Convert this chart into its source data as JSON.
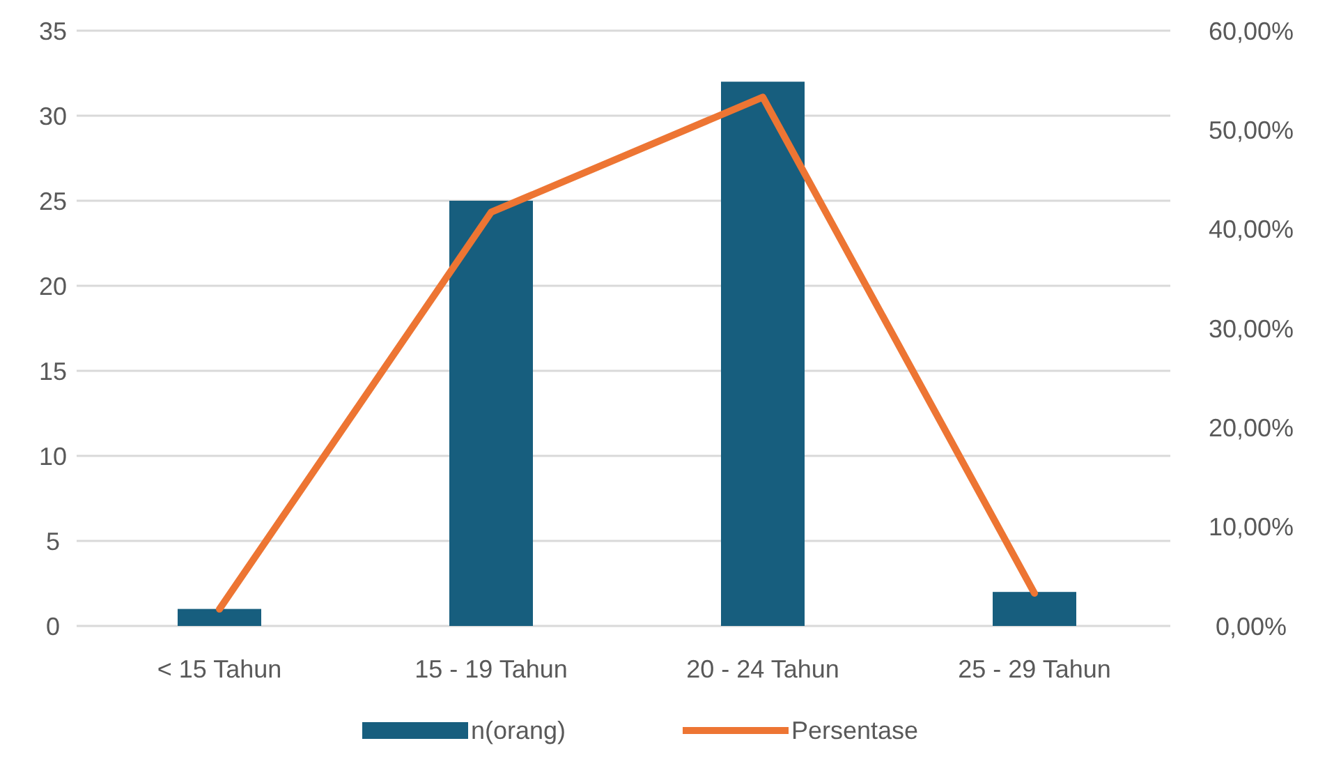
{
  "chart_data": {
    "type": "bar",
    "categories": [
      "< 15 Tahun",
      "15 - 19 Tahun",
      "20 - 24 Tahun",
      "25 - 29 Tahun"
    ],
    "series": [
      {
        "name": "n(orang)",
        "color": "#175e7e",
        "values": [
          1,
          25,
          32,
          2
        ]
      },
      {
        "name": "Persentase",
        "type": "line",
        "axis": "y2",
        "color": "#ed7533",
        "values": [
          1.7,
          41.7,
          53.3,
          3.3
        ]
      }
    ],
    "ylim": [
      0,
      35
    ],
    "yticks": [
      0,
      5,
      10,
      15,
      20,
      25,
      30,
      35
    ],
    "y2lim": [
      0,
      60
    ],
    "y2ticks": [
      {
        "value": 0,
        "label": "0,00%"
      },
      {
        "value": 10,
        "label": "10,00%"
      },
      {
        "value": 20,
        "label": "20,00%"
      },
      {
        "value": 30,
        "label": "30,00%"
      },
      {
        "value": 40,
        "label": "40,00%"
      },
      {
        "value": 50,
        "label": "50,00%"
      },
      {
        "value": 60,
        "label": "60,00%"
      }
    ],
    "grid": "y",
    "legend": "bottom",
    "marker": "none",
    "line_style": "solid"
  }
}
